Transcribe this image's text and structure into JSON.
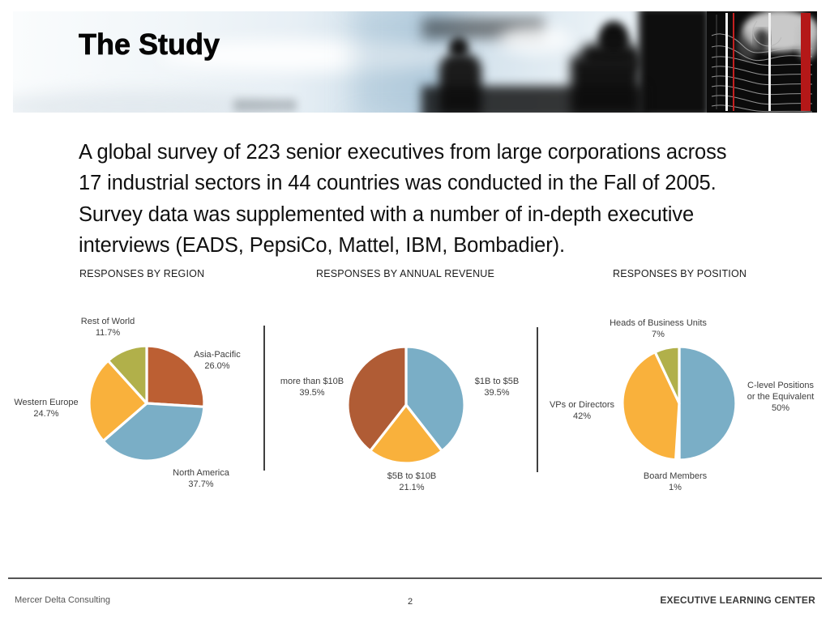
{
  "header": {
    "title": "The Study"
  },
  "intro": {
    "lines": [
      "A global survey of 223 senior executives from large corporations across",
      "17 industrial sectors in 44 countries was conducted in the Fall of 2005.",
      "Survey data was supplemented with a number of in-depth executive",
      "interviews (EADS, PepsiCo, Mattel, IBM, Bombadier)."
    ]
  },
  "chart_data": [
    {
      "type": "pie",
      "title": "RESPONSES BY REGION",
      "slices": [
        {
          "label": "Asia-Pacific",
          "value": 26.0,
          "display": "26.0%",
          "color": "#bc5f33"
        },
        {
          "label": "North America",
          "value": 37.7,
          "display": "37.7%",
          "color": "#7aaec6"
        },
        {
          "label": "Western Europe",
          "value": 24.7,
          "display": "24.7%",
          "color": "#f9b13c"
        },
        {
          "label": "Rest of World",
          "value": 11.7,
          "display": "11.7%",
          "color": "#b1b04a"
        }
      ]
    },
    {
      "type": "pie",
      "title": "RESPONSES BY ANNUAL REVENUE",
      "slices": [
        {
          "label": "$1B to $5B",
          "value": 39.5,
          "display": "39.5%",
          "color": "#7aaec6"
        },
        {
          "label": "$5B to $10B",
          "value": 21.1,
          "display": "21.1%",
          "color": "#f9b13c"
        },
        {
          "label": "more than $10B",
          "value": 39.5,
          "display": "39.5%",
          "color": "#b05c35"
        }
      ]
    },
    {
      "type": "pie",
      "title": "RESPONSES BY POSITION",
      "slices": [
        {
          "label": "C-level Positions or the Equivalent",
          "value": 50,
          "display": "50%",
          "color": "#7aaec6"
        },
        {
          "label": "Board Members",
          "value": 1,
          "display": "1%",
          "color": "#ffffff"
        },
        {
          "label": "VPs or Directors",
          "value": 42,
          "display": "42%",
          "color": "#f9b13c"
        },
        {
          "label": "Heads of Business Units",
          "value": 7,
          "display": "7%",
          "color": "#b1b04a"
        }
      ]
    }
  ],
  "footer": {
    "left": "Mercer Delta Consulting",
    "page_number": "2",
    "right": "EXECUTIVE LEARNING CENTER"
  }
}
